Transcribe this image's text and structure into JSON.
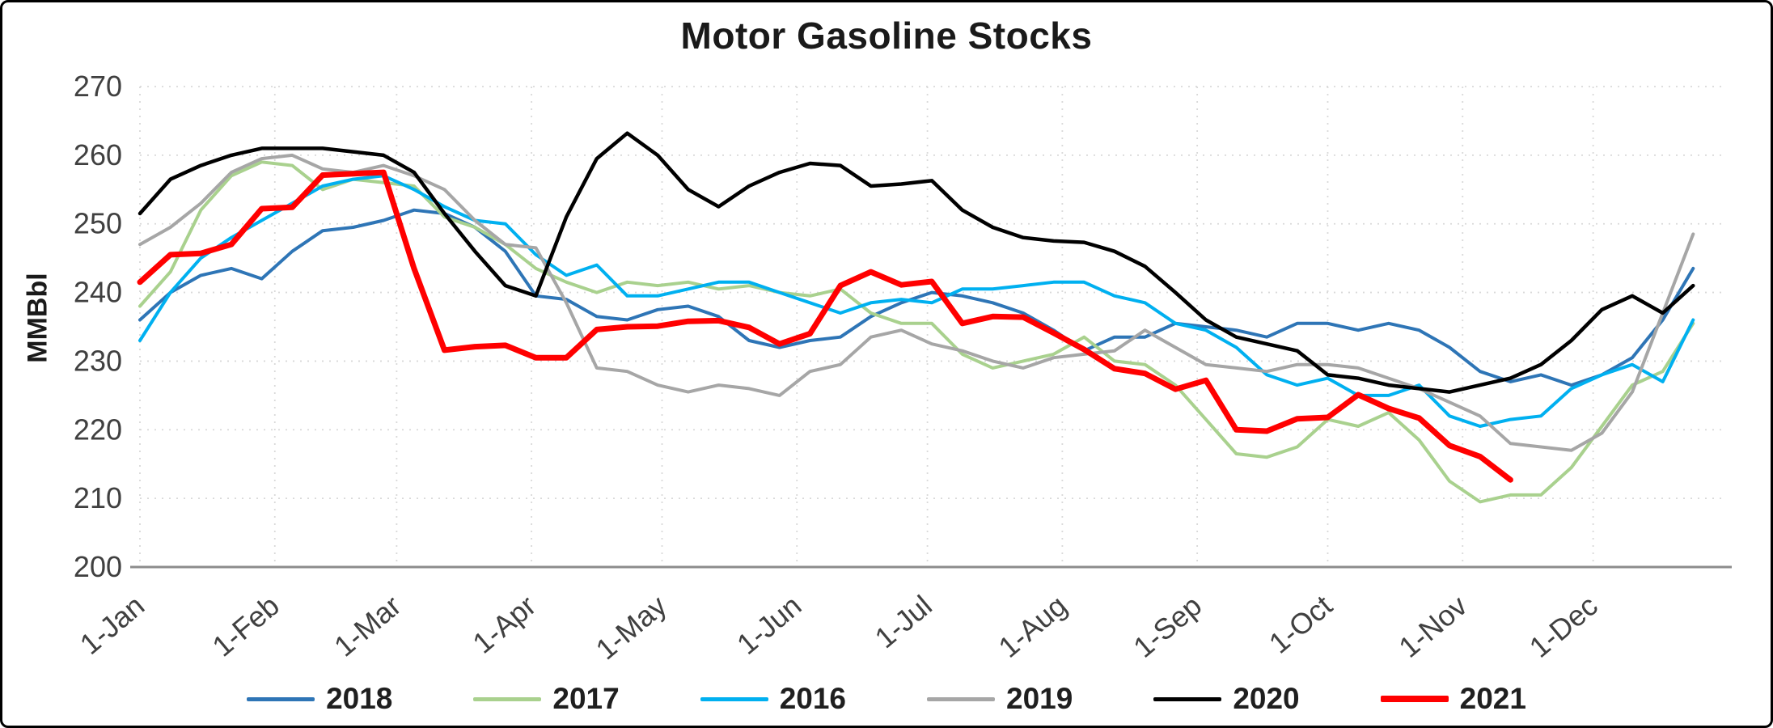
{
  "chart": {
    "title": "Motor Gasoline Stocks",
    "y_axis_label": "MMBbl"
  },
  "chart_data": {
    "type": "line",
    "title": "Motor Gasoline Stocks",
    "xlabel": "",
    "ylabel": "MMBbl",
    "ylim": [
      200,
      270
    ],
    "y_ticks": [
      200,
      210,
      220,
      230,
      240,
      250,
      260,
      270
    ],
    "x_tick_labels": [
      "1-Jan",
      "1-Feb",
      "1-Mar",
      "1-Apr",
      "1-May",
      "1-Jun",
      "1-Jul",
      "1-Aug",
      "1-Sep",
      "1-Oct",
      "1-Nov",
      "1-Dec"
    ],
    "x_tick_days": [
      1,
      32,
      60,
      91,
      121,
      152,
      182,
      213,
      244,
      274,
      305,
      335
    ],
    "x_unit": "weekly data, first point Jan 1, 7-day spacing",
    "grid": true,
    "legend_position": "bottom",
    "series": [
      {
        "name": "2018",
        "color": "#2E75B6",
        "line_width": 4,
        "values": [
          236,
          240,
          242.5,
          243.5,
          242,
          246,
          249,
          249.5,
          250.5,
          252,
          251.5,
          249.5,
          246,
          239.5,
          239,
          236.5,
          236,
          237.5,
          238,
          236.5,
          233,
          232,
          233,
          233.5,
          236.5,
          238.5,
          240,
          239.5,
          238.5,
          237,
          234.5,
          231.5,
          233.5,
          233.5,
          235.5,
          235,
          234.5,
          233.5,
          235.5,
          235.5,
          234.5,
          235.5,
          234.5,
          232,
          228.5,
          227,
          228,
          226.5,
          228,
          230.5,
          236,
          243.5
        ]
      },
      {
        "name": "2017",
        "color": "#A9D18E",
        "line_width": 4,
        "values": [
          238,
          243,
          252,
          257,
          259,
          258.5,
          255,
          256.5,
          256,
          255.5,
          251,
          249.5,
          247,
          243.5,
          241.5,
          240,
          241.5,
          241,
          241.5,
          240.5,
          241,
          240,
          239.5,
          240.5,
          237,
          235.5,
          235.5,
          231,
          229,
          230,
          231,
          233.5,
          230,
          229.5,
          226.5,
          221.5,
          216.5,
          216,
          217.5,
          221.5,
          220.5,
          222.5,
          218.5,
          212.5,
          209.5,
          210.5,
          210.5,
          214.5,
          220.5,
          226.5,
          228.5,
          235.5
        ]
      },
      {
        "name": "2016",
        "color": "#00B0F0",
        "line_width": 4,
        "values": [
          233,
          240,
          245,
          248,
          250.5,
          253,
          255.5,
          256.5,
          257,
          255,
          252.5,
          250.5,
          250,
          245.5,
          242.5,
          244,
          239.5,
          239.5,
          240.5,
          241.5,
          241.5,
          240,
          238.5,
          237,
          238.5,
          239,
          238.5,
          240.5,
          240.5,
          241,
          241.5,
          241.5,
          239.5,
          238.5,
          235.5,
          234.5,
          232,
          228,
          226.5,
          227.5,
          225,
          225,
          226.5,
          222,
          220.5,
          221.5,
          222,
          226,
          228,
          229.5,
          227,
          236
        ]
      },
      {
        "name": "2019",
        "color": "#A6A6A6",
        "line_width": 4,
        "values": [
          247,
          249.5,
          253,
          257.5,
          259.5,
          260,
          258,
          257.5,
          258.5,
          257,
          255,
          250.5,
          247,
          246.5,
          238.5,
          229,
          228.5,
          226.5,
          225.5,
          226.5,
          226,
          225,
          228.5,
          229.5,
          233.5,
          234.5,
          232.5,
          231.5,
          230,
          229,
          230.5,
          231,
          231.5,
          234.5,
          232,
          229.5,
          229,
          228.5,
          229.5,
          229.5,
          229,
          227.5,
          226,
          224,
          222,
          218,
          217.5,
          217,
          219.5,
          225.5,
          237,
          248.5
        ]
      },
      {
        "name": "2020",
        "color": "#000000",
        "line_width": 4.5,
        "values": [
          251.5,
          256.5,
          258.5,
          260,
          261,
          261,
          261,
          260.5,
          260,
          257.5,
          251.5,
          246,
          241,
          239.5,
          251,
          259.5,
          263.2,
          260,
          255,
          252.5,
          255.5,
          257.5,
          258.8,
          258.5,
          255.5,
          255.8,
          256.3,
          252,
          249.5,
          248,
          247.5,
          247.3,
          246,
          243.8,
          240,
          236,
          233.5,
          232.5,
          231.5,
          228,
          227.5,
          226.5,
          226,
          225.5,
          226.5,
          227.5,
          229.5,
          233,
          237.5,
          239.5,
          237,
          241
        ]
      },
      {
        "name": "2021",
        "color": "#FF0000",
        "line_width": 7,
        "values": [
          241.5,
          245.5,
          245.7,
          247,
          252.2,
          252.4,
          257.1,
          257.3,
          257.5,
          243.5,
          231.6,
          232.1,
          232.3,
          230.5,
          230.5,
          234.6,
          235,
          235.1,
          235.8,
          235.9,
          234.9,
          232.5,
          234,
          241,
          243,
          241.1,
          241.6,
          235.5,
          236.5,
          236.4,
          234.1,
          231.7,
          228.9,
          228.2,
          225.9,
          227.2,
          220,
          219.8,
          221.6,
          221.8,
          225.1,
          223.1,
          221.7,
          217.7,
          216.1,
          212.7
        ]
      }
    ]
  }
}
